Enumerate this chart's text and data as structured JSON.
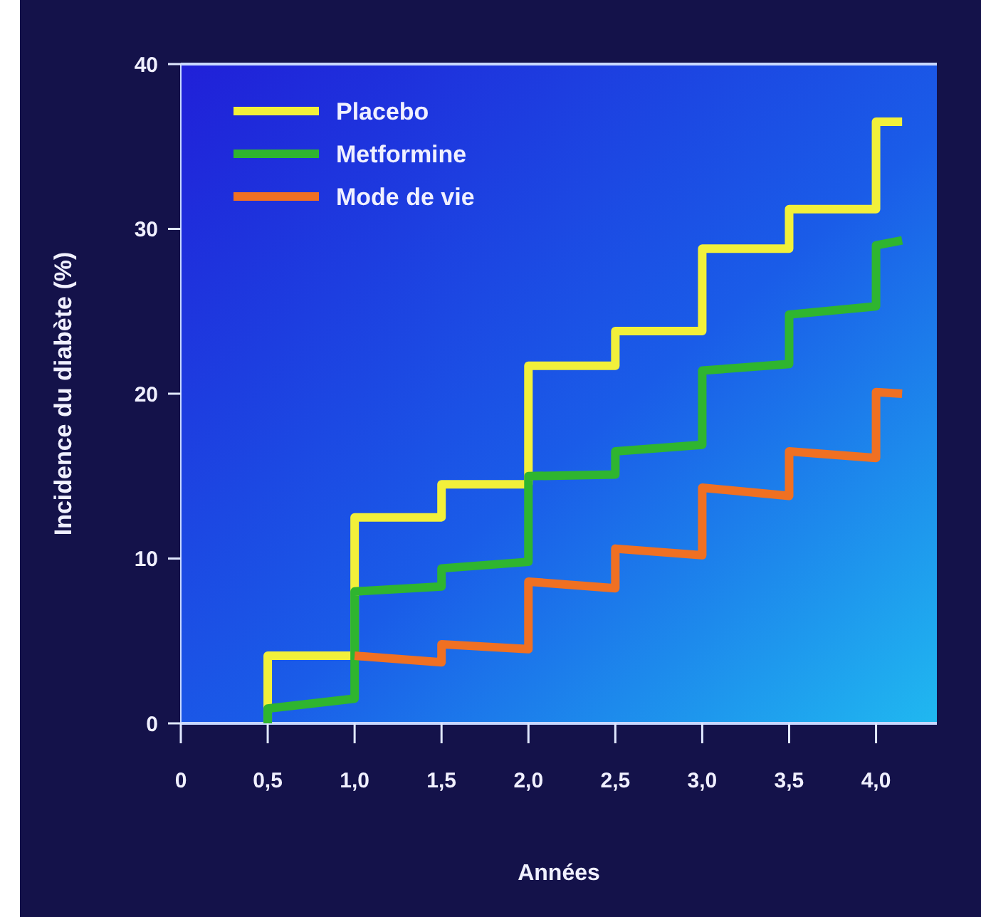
{
  "chart_data": {
    "type": "line",
    "xlabel": "Années",
    "ylabel": "Incidence du diabète (%)",
    "xlim": [
      0,
      4.35
    ],
    "ylim": [
      0,
      40
    ],
    "xticks": [
      0,
      {
        "value": 0.5,
        "label": "0,5"
      },
      {
        "value": 1,
        "label": "1,0"
      },
      {
        "value": 1.5,
        "label": "1,5"
      },
      {
        "value": 2,
        "label": "2,0"
      },
      {
        "value": 2.5,
        "label": "2,5"
      },
      {
        "value": 3,
        "label": "3,0"
      },
      {
        "value": 3.5,
        "label": "3,5"
      },
      {
        "value": 4,
        "label": "4,0"
      }
    ],
    "yticks": [
      0,
      10,
      20,
      30,
      40
    ],
    "legend": "top left",
    "grid": false,
    "line_style": "solid",
    "marker": "none",
    "series": [
      {
        "name": "Placebo",
        "color": "#f2f03a",
        "x": [
          0.5,
          0.5,
          1,
          1,
          1.5,
          1.5,
          2,
          2,
          2.5,
          2.5,
          3,
          3,
          3.5,
          3.5,
          4,
          4,
          4.15
        ],
        "values": [
          0,
          4.1,
          4.1,
          12.5,
          12.5,
          14.5,
          14.5,
          21.7,
          21.7,
          23.8,
          23.8,
          28.8,
          28.8,
          31.2,
          31.2,
          36.5,
          36.5
        ]
      },
      {
        "name": "Metformine",
        "color": "#2fb52f",
        "x": [
          0.5,
          0.5,
          1,
          1,
          1.5,
          1.5,
          2,
          2,
          2.5,
          2.5,
          3,
          3,
          3.5,
          3.5,
          4,
          4,
          4.15
        ],
        "values": [
          0,
          0.9,
          1.5,
          8,
          8.3,
          9.4,
          9.8,
          15,
          15.1,
          16.5,
          16.9,
          21.4,
          21.8,
          24.8,
          25.3,
          29,
          29.3
        ]
      },
      {
        "name": "Mode de vie",
        "color": "#f07022",
        "x": [
          1,
          1.5,
          1.5,
          2,
          2,
          2.5,
          2.5,
          3,
          3,
          3.5,
          3.5,
          4,
          4,
          4.15
        ],
        "values": [
          4.1,
          3.7,
          4.8,
          4.5,
          8.6,
          8.2,
          10.6,
          10.2,
          14.3,
          13.8,
          16.5,
          16.1,
          20.1,
          20
        ]
      }
    ]
  }
}
